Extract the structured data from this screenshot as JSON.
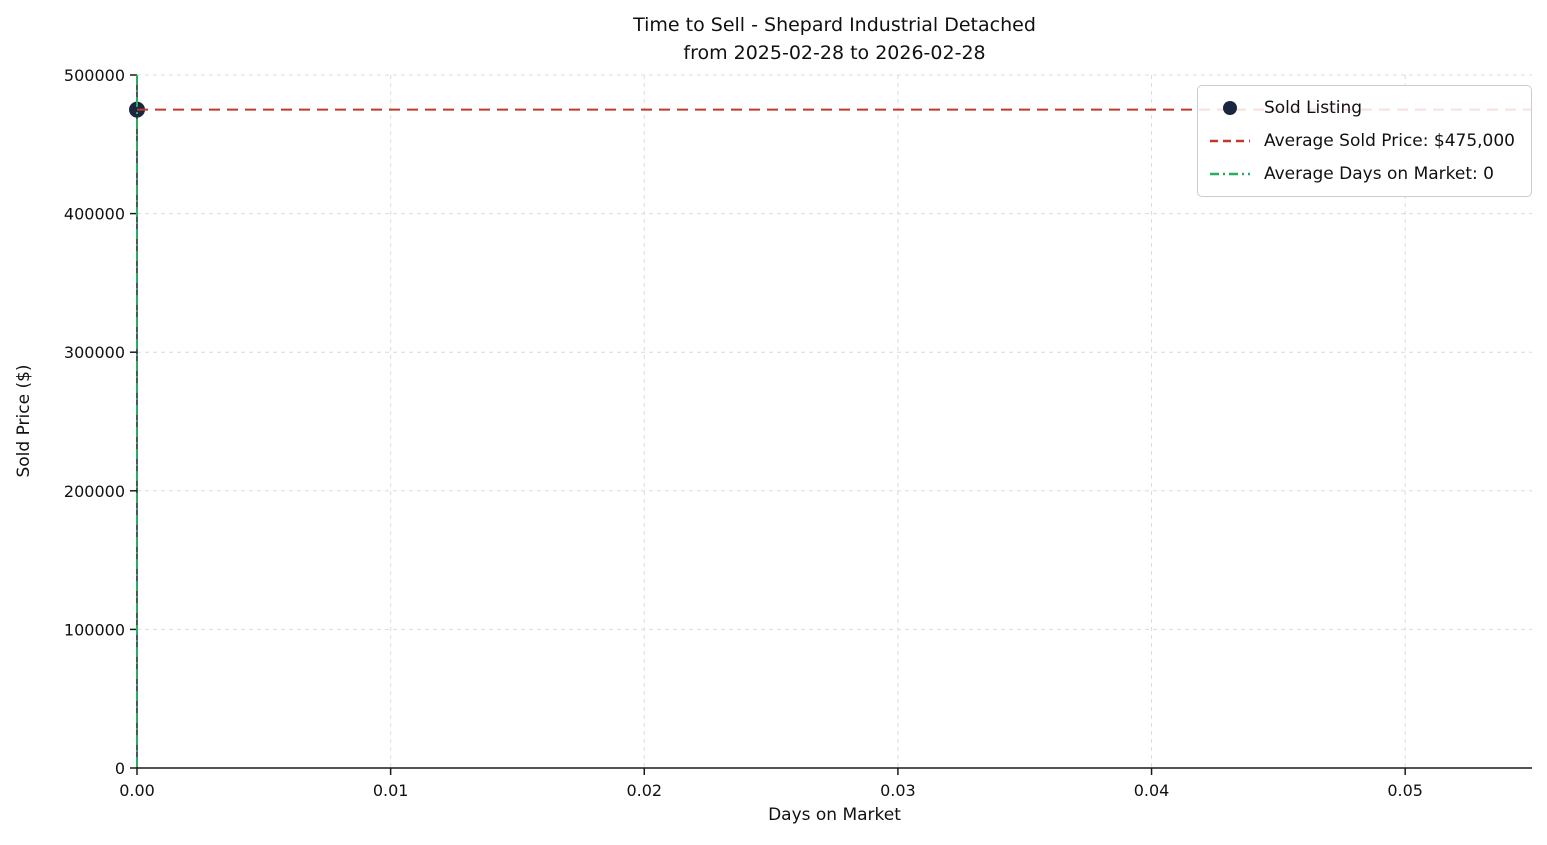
{
  "chart_data": {
    "type": "scatter",
    "title": "Time to Sell - Shepard Industrial Detached",
    "subtitle": "from 2025-02-28 to 2026-02-28",
    "xlabel": "Days on Market",
    "ylabel": "Sold Price ($)",
    "xlim": [
      0,
      0.055
    ],
    "ylim": [
      0,
      500000
    ],
    "x_ticks": [
      0.0,
      0.01,
      0.02,
      0.03,
      0.04,
      0.05
    ],
    "x_tick_labels": [
      "0.00",
      "0.01",
      "0.02",
      "0.03",
      "0.04",
      "0.05"
    ],
    "y_ticks": [
      0,
      100000,
      200000,
      300000,
      400000,
      500000
    ],
    "y_tick_labels": [
      "0",
      "100000",
      "200000",
      "300000",
      "400000",
      "500000"
    ],
    "grid": true,
    "grid_style": "dashed",
    "series": [
      {
        "name": "Sold Listing",
        "kind": "scatter",
        "points": [
          {
            "x": 0,
            "y": 475000
          }
        ],
        "color": "#1b2740",
        "marker": "circle"
      },
      {
        "name": "Average Sold Price: $475,000",
        "kind": "hline",
        "y": 475000,
        "color": "#c0392b",
        "dash": "dashed"
      },
      {
        "name": "Average Days on Market: 0",
        "kind": "vline",
        "x": 0,
        "color": "#27ae60",
        "dash": "dashdot"
      }
    ],
    "legend": {
      "position": "upper right",
      "entries": [
        {
          "label": "Sold Listing",
          "marker": "dot",
          "color": "#1b2740"
        },
        {
          "label": "Average Sold Price: $475,000",
          "marker": "dashed-line",
          "color": "#c0392b"
        },
        {
          "label": "Average Days on Market: 0",
          "marker": "dashdot-line",
          "color": "#27ae60"
        }
      ]
    },
    "colors": {
      "grid": "#dcdcdc",
      "axis": "#1a1a1a",
      "text": "#111111"
    },
    "stats": {
      "average_sold_price": "$475,000",
      "average_days_on_market": "0"
    }
  }
}
